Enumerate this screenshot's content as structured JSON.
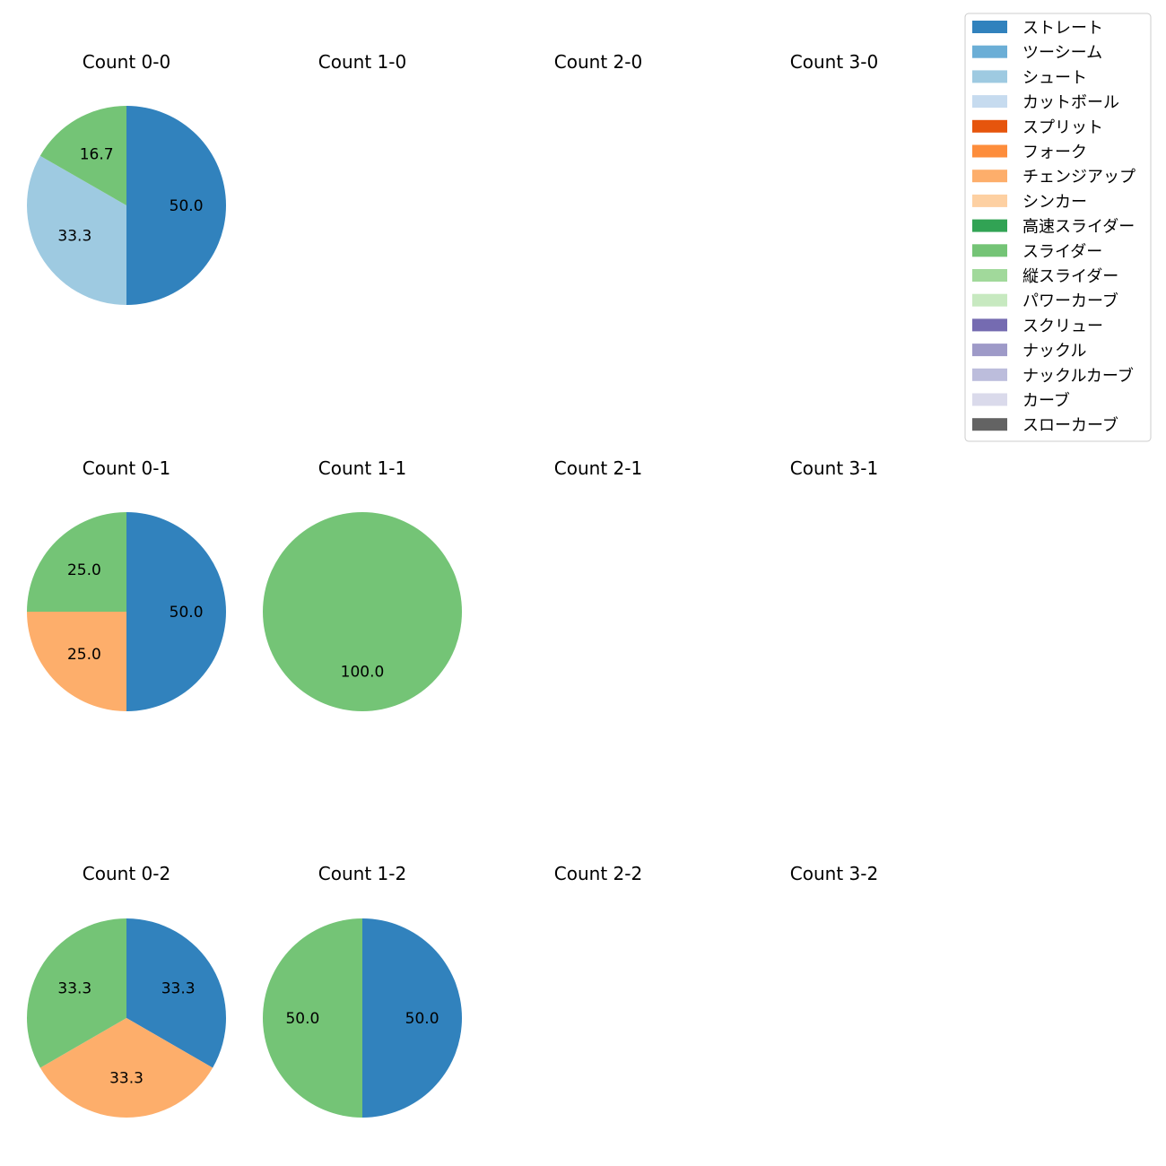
{
  "chart_data": {
    "type": "pie",
    "title": "",
    "legend_position": "top-right",
    "categories": [
      "ストレート",
      "ツーシーム",
      "シュート",
      "カットボール",
      "スプリット",
      "フォーク",
      "チェンジアップ",
      "シンカー",
      "高速スライダー",
      "スライダー",
      "縦スライダー",
      "パワーカーブ",
      "スクリュー",
      "ナックル",
      "ナックルカーブ",
      "カーブ",
      "スローカーブ"
    ],
    "colors": [
      "#3182bd",
      "#6baed6",
      "#9ecae1",
      "#c6dbef",
      "#e6550d",
      "#fd8d3c",
      "#fdae6b",
      "#fdd0a2",
      "#31a354",
      "#74c476",
      "#a1d99b",
      "#c7e9c0",
      "#756bb1",
      "#9e9ac8",
      "#bcbddc",
      "#dadaeb",
      "#636363"
    ],
    "panels": [
      {
        "title": "Count 0-0",
        "slices": [
          {
            "category": "ストレート",
            "value": 50.0,
            "label": "50.0"
          },
          {
            "category": "シュート",
            "value": 33.3,
            "label": "33.3"
          },
          {
            "category": "スライダー",
            "value": 16.7,
            "label": "16.7"
          }
        ]
      },
      {
        "title": "Count 1-0",
        "slices": []
      },
      {
        "title": "Count 2-0",
        "slices": []
      },
      {
        "title": "Count 3-0",
        "slices": []
      },
      {
        "title": "Count 0-1",
        "slices": [
          {
            "category": "ストレート",
            "value": 50.0,
            "label": "50.0"
          },
          {
            "category": "チェンジアップ",
            "value": 25.0,
            "label": "25.0"
          },
          {
            "category": "スライダー",
            "value": 25.0,
            "label": "25.0"
          }
        ]
      },
      {
        "title": "Count 1-1",
        "slices": [
          {
            "category": "スライダー",
            "value": 100.0,
            "label": "100.0"
          }
        ]
      },
      {
        "title": "Count 2-1",
        "slices": []
      },
      {
        "title": "Count 3-1",
        "slices": []
      },
      {
        "title": "Count 0-2",
        "slices": [
          {
            "category": "ストレート",
            "value": 33.3,
            "label": "33.3"
          },
          {
            "category": "チェンジアップ",
            "value": 33.3,
            "label": "33.3"
          },
          {
            "category": "スライダー",
            "value": 33.3,
            "label": "33.3"
          }
        ]
      },
      {
        "title": "Count 1-2",
        "slices": [
          {
            "category": "ストレート",
            "value": 50.0,
            "label": "50.0"
          },
          {
            "category": "スライダー",
            "value": 50.0,
            "label": "50.0"
          }
        ]
      },
      {
        "title": "Count 2-2",
        "slices": []
      },
      {
        "title": "Count 3-2",
        "slices": []
      }
    ]
  }
}
